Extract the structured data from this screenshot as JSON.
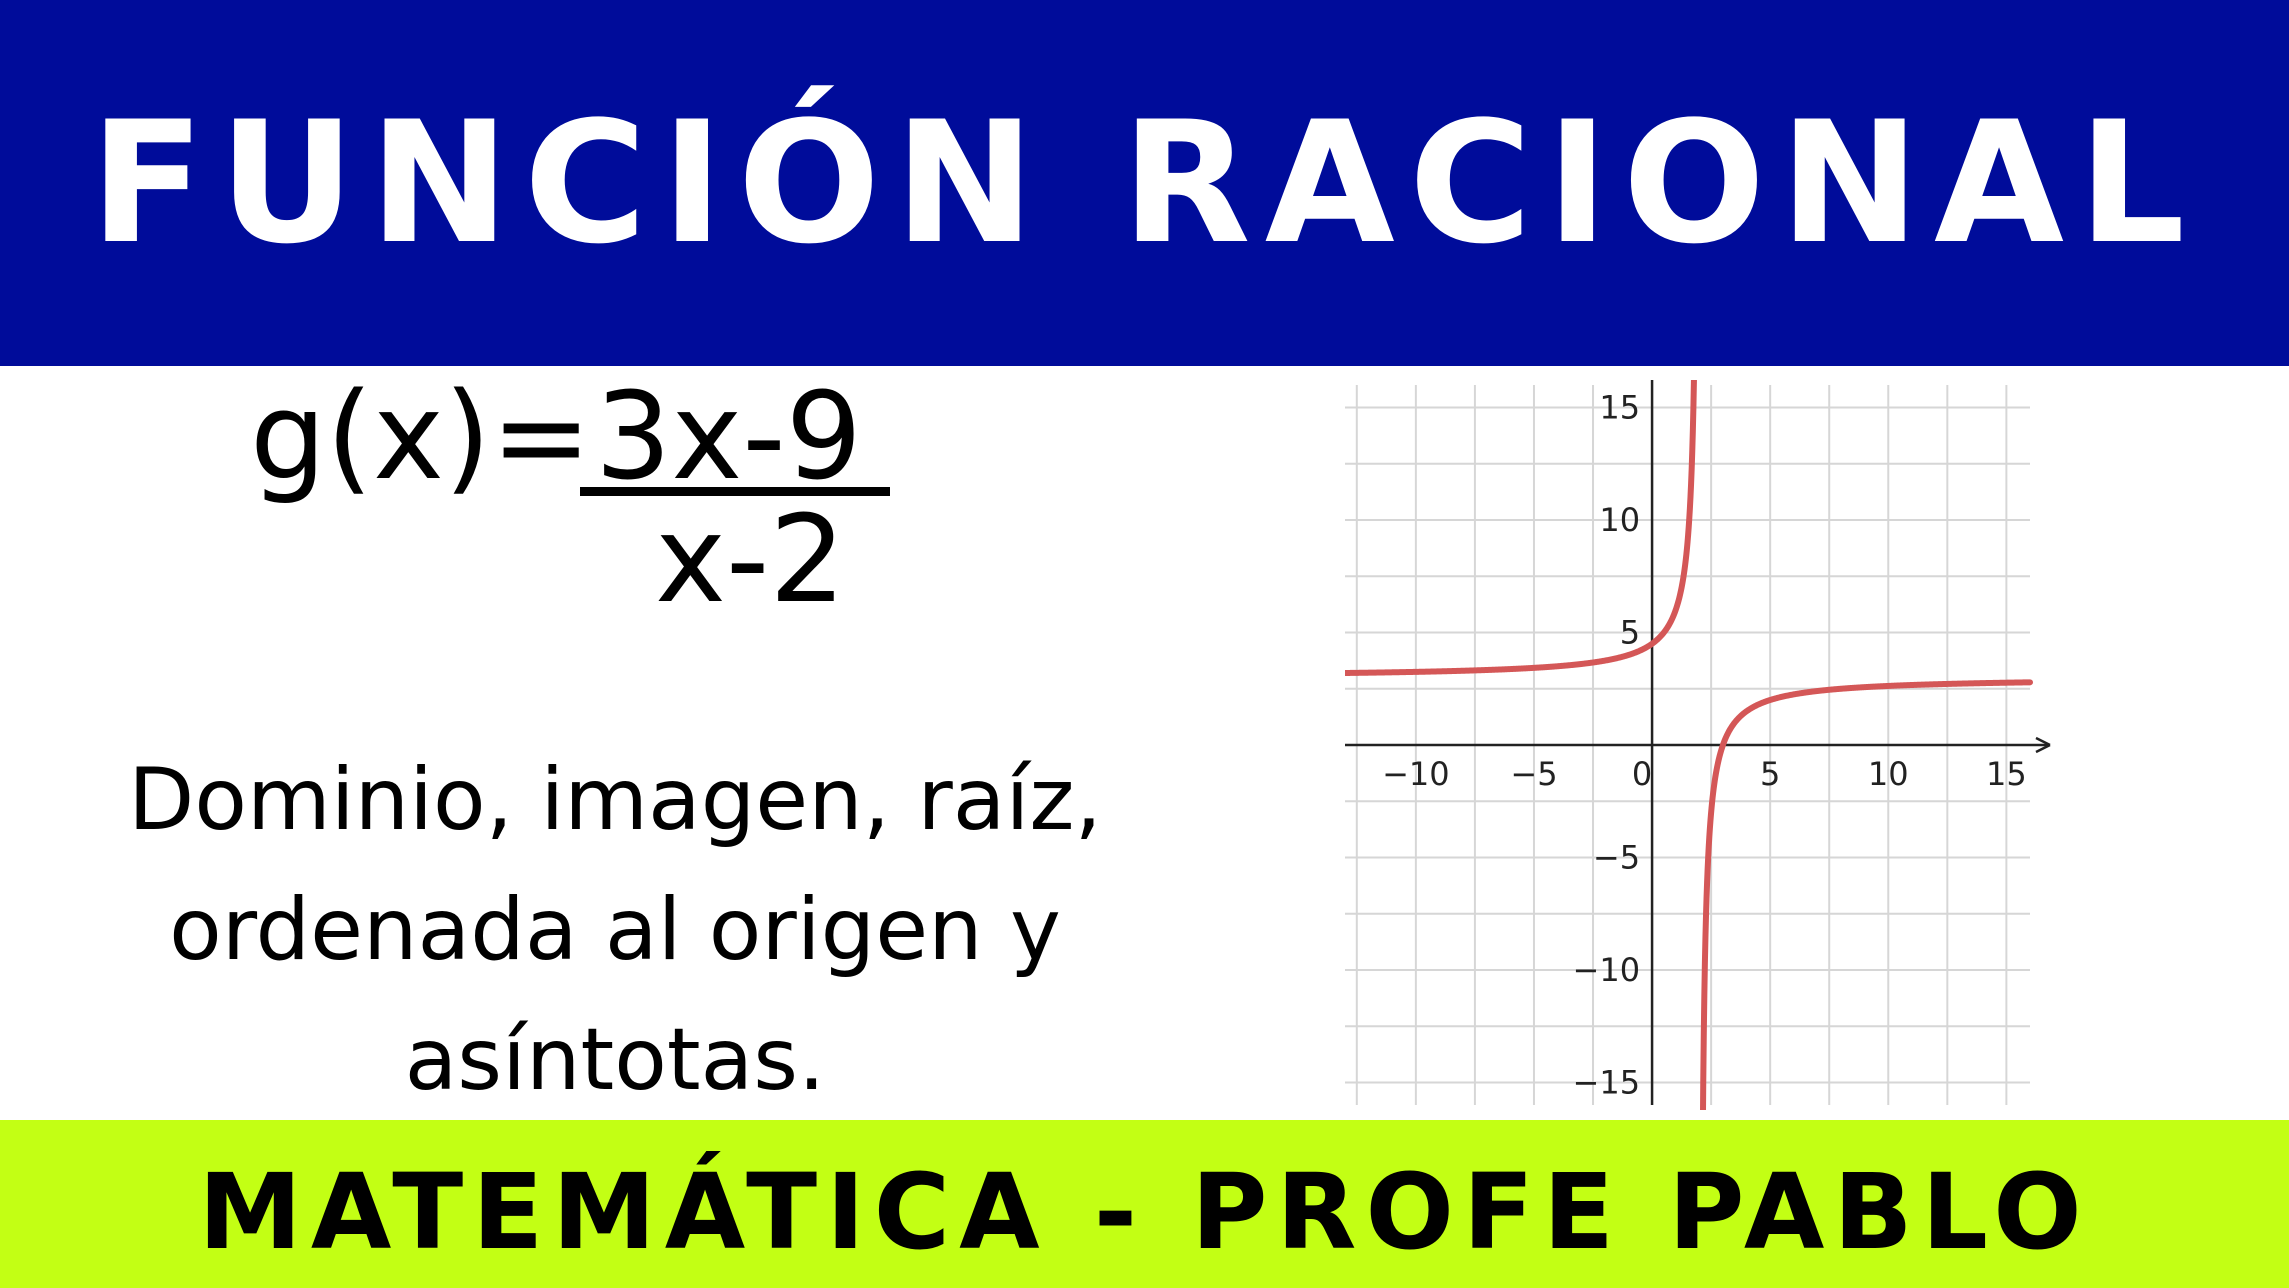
{
  "header": {
    "title": "FUNCIÓN RACIONAL"
  },
  "formula": {
    "lhs": "g(x)=",
    "numerator": "3x-9",
    "denominator": "x-2"
  },
  "description": {
    "lines": [
      "Dominio, imagen, raíz,",
      "ordenada al origen y",
      "asíntotas."
    ]
  },
  "footer": {
    "title": "MATEMÁTICA - PROFE PABLO"
  },
  "colors": {
    "header": "#000c9a",
    "footer": "#c3ff14",
    "curve": "#d45757"
  },
  "chart_data": {
    "type": "line",
    "title": "",
    "xlabel": "",
    "ylabel": "",
    "function": "(3x-9)/(x-2)",
    "vertical_asymptote": 2,
    "xlim": [
      -13,
      16
    ],
    "ylim": [
      -16,
      16
    ],
    "x_ticks": [
      -10,
      -5,
      0,
      5,
      10,
      15
    ],
    "x_tick_labels": [
      "−10",
      "−5",
      "0",
      "5",
      "10",
      "15"
    ],
    "y_ticks": [
      15,
      10,
      5,
      -5,
      -10,
      -15
    ],
    "y_tick_labels": [
      "15",
      "10",
      "5",
      "−5",
      "−10",
      "−15"
    ],
    "grid": true,
    "series": [
      {
        "x": [
          -13,
          -10,
          -8,
          -6,
          -4,
          -2,
          -1,
          0,
          0.5,
          1,
          1.3,
          1.5,
          1.6,
          1.7,
          1.75,
          1.8
        ],
        "y": [
          3.2,
          3.25,
          3.3,
          3.38,
          3.5,
          3.75,
          4,
          4.5,
          5,
          6,
          7.29,
          9,
          10.5,
          13,
          15,
          18
        ]
      },
      {
        "x": [
          2.2,
          2.25,
          2.3,
          2.4,
          2.5,
          3,
          3.5,
          4,
          5,
          6,
          8,
          10,
          13,
          16
        ],
        "y": [
          -12,
          -9,
          -7,
          -4.5,
          -3,
          0,
          1,
          1.5,
          2,
          2.25,
          2.5,
          2.625,
          2.727,
          2.786
        ]
      }
    ]
  }
}
